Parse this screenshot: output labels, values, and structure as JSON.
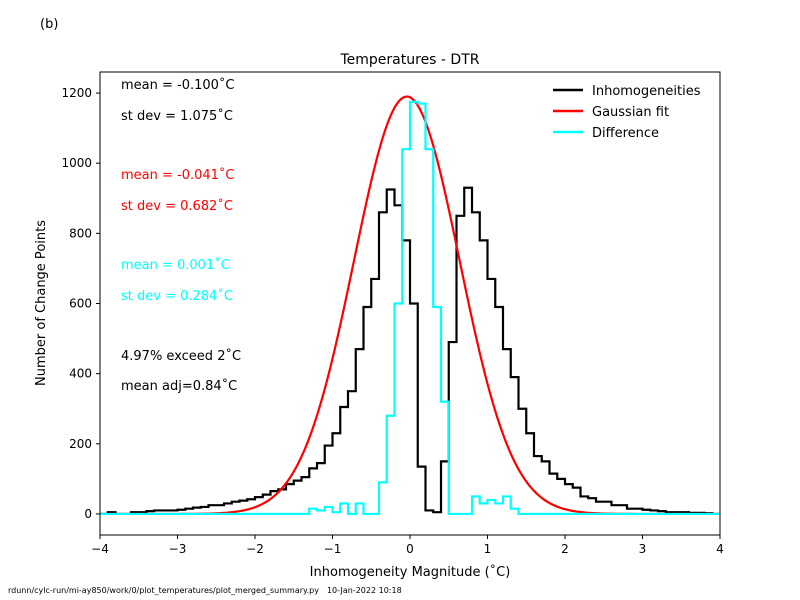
{
  "panel_label": "(b)",
  "footer": {
    "path": "rdunn/cylc-run/mi-ay850/work/0/plot_temperatures/plot_merged_summary.py",
    "date": "10-Jan-2022 10:18"
  },
  "annotations": [
    {
      "text": "mean = -0.100$^\\circ$C",
      "display": "mean = -0.100˚C",
      "color": "#000000"
    },
    {
      "text": "st dev = 1.075",
      "display": "st dev =  1.075˚C",
      "color": "#000000"
    },
    {
      "display": "mean = -0.041˚C",
      "color": "#ff0000"
    },
    {
      "display": "st dev =  0.682˚C",
      "color": "#ff0000"
    },
    {
      "display": "mean =  0.001˚C",
      "color": "#00ffff"
    },
    {
      "display": "st dev =  0.284˚C",
      "color": "#00ffff"
    },
    {
      "display": "4.97% exceed 2˚C",
      "color": "#000000"
    },
    {
      "display": "mean adj=0.84˚C",
      "color": "#000000"
    }
  ],
  "chart_data": {
    "type": "line",
    "title": "Temperatures - DTR",
    "xlabel": "Inhomogeneity Magnitude (˚C)",
    "ylabel": "Number of Change Points",
    "xlim": [
      -4,
      4
    ],
    "ylim": [
      -60,
      1260
    ],
    "xticks": [
      -4,
      -3,
      -2,
      -1,
      0,
      1,
      2,
      3,
      4
    ],
    "yticks": [
      0,
      200,
      400,
      600,
      800,
      1000,
      1200
    ],
    "legend_position": "top-right",
    "grid": false,
    "bin_width": 0.1,
    "bin_start": -4.0,
    "series": [
      {
        "name": "Inhomogeneities",
        "style": "step",
        "color": "#000000",
        "values": [
          0,
          5,
          0,
          0,
          5,
          5,
          8,
          10,
          10,
          10,
          12,
          15,
          18,
          20,
          25,
          25,
          30,
          35,
          38,
          42,
          48,
          55,
          65,
          70,
          85,
          95,
          105,
          130,
          145,
          195,
          230,
          305,
          350,
          470,
          590,
          670,
          860,
          925,
          880,
          780,
          600,
          135,
          10,
          5,
          150,
          490,
          850,
          930,
          860,
          780,
          670,
          590,
          470,
          390,
          300,
          230,
          165,
          150,
          115,
          100,
          85,
          75,
          50,
          45,
          35,
          35,
          25,
          25,
          15,
          15,
          12,
          10,
          8,
          5,
          5,
          5,
          3,
          3,
          2,
          0
        ]
      },
      {
        "name": "Gaussian fit",
        "style": "curve",
        "color": "#ff0000",
        "mean": -0.041,
        "sd": 0.682,
        "peak": 1190
      },
      {
        "name": "Difference",
        "style": "step",
        "color": "#00ffff",
        "values": [
          0,
          0,
          0,
          0,
          0,
          0,
          0,
          0,
          0,
          0,
          0,
          0,
          0,
          0,
          0,
          0,
          0,
          0,
          0,
          0,
          0,
          0,
          0,
          0,
          0,
          0,
          0,
          15,
          10,
          20,
          5,
          30,
          0,
          30,
          0,
          0,
          90,
          280,
          600,
          1040,
          1175,
          1170,
          1040,
          590,
          320,
          0,
          0,
          0,
          50,
          30,
          40,
          30,
          50,
          15,
          0,
          0,
          0,
          0,
          0,
          0,
          0,
          0,
          0,
          0,
          0,
          0,
          0,
          0,
          0,
          0,
          0,
          0,
          0,
          0,
          0,
          0,
          0,
          0,
          0,
          0
        ]
      }
    ]
  }
}
